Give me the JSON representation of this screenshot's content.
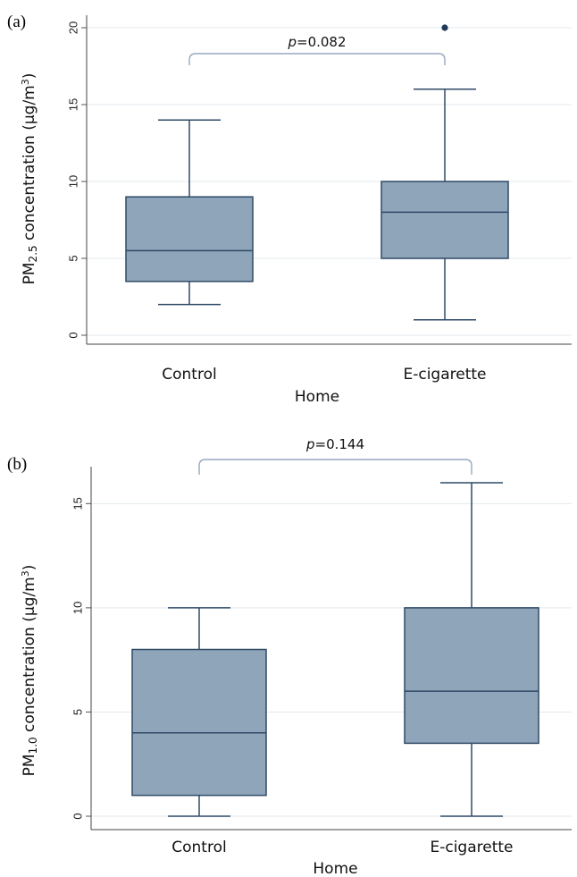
{
  "chart_data": [
    {
      "type": "box",
      "panel_label": "(a)",
      "xlabel": "Home",
      "ylabel_prefix": "PM",
      "ylabel_sub": "2.5",
      "ylabel_main": " concentration (µg/m",
      "ylabel_sup": "3",
      "ylabel_suffix": ")",
      "ylim": [
        0,
        20
      ],
      "yticks": [
        0,
        5,
        10,
        15,
        20
      ],
      "grid": true,
      "categories": [
        "Control",
        "E-cigarette"
      ],
      "boxes": [
        {
          "min": 2,
          "q1": 3.5,
          "median": 5.5,
          "q3": 9,
          "max": 14,
          "outliers": []
        },
        {
          "min": 1,
          "q1": 5,
          "median": 8,
          "q3": 10,
          "max": 16,
          "outliers": [
            20
          ]
        }
      ],
      "p_value_italic": "p",
      "p_value_text": "=0.082",
      "colors": {
        "box_fill": "#8fa5ba",
        "box_stroke": "#2f4a66",
        "bracket": "#95a9bf",
        "grid": "#e3e9ee",
        "outlier": "#1f3a57"
      }
    },
    {
      "type": "box",
      "panel_label": "(b)",
      "xlabel": "Home",
      "ylabel_prefix": "PM",
      "ylabel_sub": "1.0",
      "ylabel_main": " concentration (µg/m",
      "ylabel_sup": "3",
      "ylabel_suffix": ")",
      "ylim": [
        0,
        16
      ],
      "yticks": [
        0,
        5,
        10,
        15
      ],
      "grid": true,
      "categories": [
        "Control",
        "E-cigarette"
      ],
      "boxes": [
        {
          "min": 0,
          "q1": 1,
          "median": 4,
          "q3": 8,
          "max": 10,
          "outliers": []
        },
        {
          "min": 0,
          "q1": 3.5,
          "median": 6,
          "q3": 10,
          "max": 16,
          "outliers": []
        }
      ],
      "p_value_italic": "p",
      "p_value_text": "=0.144",
      "colors": {
        "box_fill": "#8fa5ba",
        "box_stroke": "#2f4a66",
        "bracket": "#95a9bf",
        "grid": "#e3e9ee",
        "outlier": "#1f3a57"
      }
    }
  ]
}
